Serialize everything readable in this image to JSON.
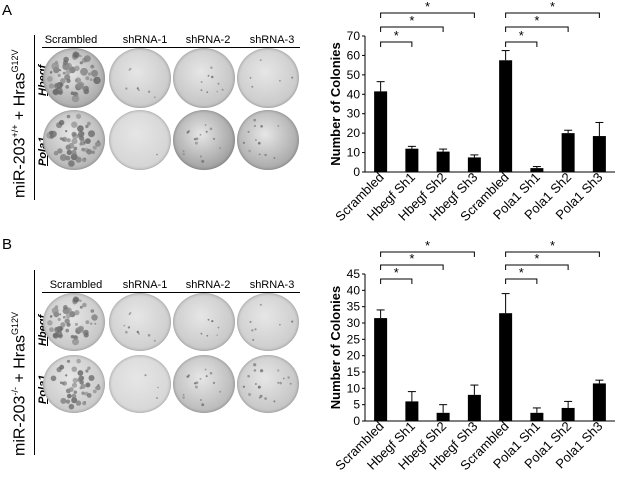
{
  "panels": [
    {
      "letter": "A",
      "side_label_prefix": "miR-203",
      "side_label_sup": "+/+",
      "side_label_mid": " + Hras",
      "side_label_sup2": "G12V",
      "column_headers": [
        "Scrambled",
        "shRNA-1",
        "shRNA-2",
        "shRNA-3"
      ],
      "row_labels": [
        "Hbegf",
        "Pola1"
      ],
      "dish_tones": [
        [
          "#a8a8a8",
          "#c9c9c9",
          "#c2c2c2",
          "#c8c8c8"
        ],
        [
          "#b3b3b3",
          "#d3d3d3",
          "#9d9d9d",
          "#a6a6a6"
        ]
      ],
      "dish_colony_density": [
        [
          1.0,
          0.12,
          0.15,
          0.08
        ],
        [
          0.85,
          0.02,
          0.25,
          0.2
        ]
      ]
    },
    {
      "letter": "B",
      "side_label_prefix": "miR-203",
      "side_label_sup": "-/-",
      "side_label_mid": " + Hras",
      "side_label_sup2": "G12V",
      "column_headers": [
        "Scrambled",
        "shRNA-1",
        "shRNA-2",
        "shRNA-3"
      ],
      "row_labels": [
        "Hbegf",
        "Pola1"
      ],
      "dish_tones": [
        [
          "#c4c4c4",
          "#cdcdcd",
          "#c6c6c6",
          "#cbcbcb"
        ],
        [
          "#c8c8c8",
          "#d6d6d6",
          "#b7b7b7",
          "#c3c3c3"
        ]
      ],
      "dish_colony_density": [
        [
          0.9,
          0.15,
          0.1,
          0.12
        ],
        [
          0.7,
          0.05,
          0.25,
          0.3
        ]
      ]
    }
  ],
  "chart_data": [
    {
      "type": "bar",
      "ylabel": "Number of Colonies",
      "ylim": [
        0,
        70
      ],
      "yticks": [
        0,
        10,
        20,
        30,
        40,
        50,
        60,
        70
      ],
      "categories": [
        "Scrambled",
        "Hbegf Sh1",
        "Hbegf Sh2",
        "Hbegf Sh3",
        "Scrambled",
        "Pola1 Sh1",
        "Pola1 Sh2",
        "Pola1 Sh3"
      ],
      "values": [
        41.5,
        12,
        10.5,
        7.5,
        57.5,
        2,
        20,
        18.5
      ],
      "errors": [
        5,
        1.2,
        1.3,
        1.3,
        5,
        0.8,
        1.5,
        7
      ],
      "bar_color": "#000000",
      "significance": [
        {
          "from": 0,
          "to": 1,
          "label": "*"
        },
        {
          "from": 0,
          "to": 2,
          "label": "*"
        },
        {
          "from": 0,
          "to": 3,
          "label": "*"
        },
        {
          "from": 4,
          "to": 5,
          "label": "*"
        },
        {
          "from": 4,
          "to": 6,
          "label": "*"
        },
        {
          "from": 4,
          "to": 7,
          "label": "*"
        }
      ]
    },
    {
      "type": "bar",
      "ylabel": "Number of Colonies",
      "ylim": [
        0,
        45
      ],
      "yticks": [
        0,
        5,
        10,
        15,
        20,
        25,
        30,
        35,
        40,
        45
      ],
      "categories": [
        "Scrambled",
        "Hbegf Sh1",
        "Hbegf Sh2",
        "Hbegf Sh3",
        "Scrambled",
        "Pola1 Sh1",
        "Pola1 Sh2",
        "Pola1 Sh3"
      ],
      "values": [
        31.5,
        6,
        2.5,
        8,
        33,
        2.5,
        4,
        11.5
      ],
      "errors": [
        2.5,
        3,
        2.5,
        3,
        6,
        1.5,
        2,
        1
      ],
      "bar_color": "#000000",
      "significance": [
        {
          "from": 0,
          "to": 1,
          "label": "*"
        },
        {
          "from": 0,
          "to": 2,
          "label": "*"
        },
        {
          "from": 0,
          "to": 3,
          "label": "*"
        },
        {
          "from": 4,
          "to": 5,
          "label": "*"
        },
        {
          "from": 4,
          "to": 6,
          "label": "*"
        },
        {
          "from": 4,
          "to": 7,
          "label": "*"
        }
      ]
    }
  ]
}
